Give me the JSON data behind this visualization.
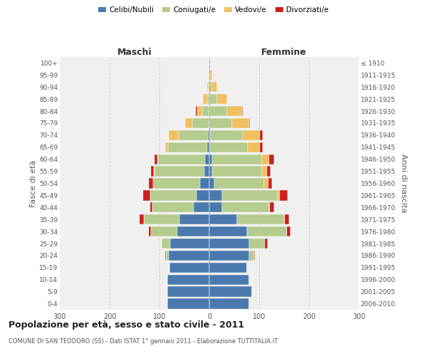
{
  "age_groups": [
    "0-4",
    "5-9",
    "10-14",
    "15-19",
    "20-24",
    "25-29",
    "30-34",
    "35-39",
    "40-44",
    "45-49",
    "50-54",
    "55-59",
    "60-64",
    "65-69",
    "70-74",
    "75-79",
    "80-84",
    "85-89",
    "90-94",
    "95-99",
    "100+"
  ],
  "birth_years": [
    "2006-2010",
    "2001-2005",
    "1996-2000",
    "1991-1995",
    "1986-1990",
    "1981-1985",
    "1976-1980",
    "1971-1975",
    "1966-1970",
    "1961-1965",
    "1956-1960",
    "1951-1955",
    "1946-1950",
    "1941-1945",
    "1936-1940",
    "1931-1935",
    "1926-1930",
    "1921-1925",
    "1916-1920",
    "1911-1915",
    "≤ 1910"
  ],
  "male": {
    "celibe": [
      85,
      85,
      85,
      80,
      82,
      78,
      65,
      60,
      32,
      26,
      18,
      10,
      8,
      5,
      3,
      2,
      0,
      0,
      0,
      0,
      0
    ],
    "coniugato": [
      0,
      0,
      0,
      0,
      5,
      18,
      52,
      72,
      82,
      92,
      95,
      100,
      95,
      78,
      58,
      32,
      15,
      5,
      2,
      0,
      0
    ],
    "vedovo": [
      0,
      0,
      0,
      0,
      0,
      0,
      0,
      0,
      0,
      0,
      0,
      2,
      2,
      5,
      20,
      15,
      10,
      8,
      2,
      1,
      0
    ],
    "divorziato": [
      0,
      0,
      0,
      0,
      2,
      0,
      5,
      8,
      5,
      15,
      8,
      5,
      5,
      0,
      0,
      0,
      2,
      0,
      0,
      0,
      0
    ]
  },
  "female": {
    "nubile": [
      80,
      85,
      80,
      75,
      80,
      80,
      75,
      55,
      25,
      25,
      10,
      5,
      5,
      2,
      2,
      0,
      0,
      0,
      0,
      0,
      0
    ],
    "coniugata": [
      0,
      0,
      0,
      0,
      10,
      32,
      80,
      95,
      95,
      112,
      100,
      100,
      100,
      75,
      65,
      45,
      35,
      15,
      5,
      2,
      0
    ],
    "vedova": [
      0,
      0,
      0,
      0,
      0,
      0,
      0,
      2,
      2,
      5,
      8,
      10,
      15,
      25,
      35,
      35,
      30,
      20,
      10,
      3,
      1
    ],
    "divorziata": [
      0,
      0,
      0,
      0,
      2,
      5,
      8,
      8,
      8,
      15,
      8,
      8,
      10,
      5,
      5,
      2,
      2,
      0,
      0,
      0,
      0
    ]
  },
  "color_celibe": "#4a7aad",
  "color_coniugato": "#b5cc8e",
  "color_vedovo": "#f0c060",
  "color_divorziato": "#cc2020",
  "xlim": 300,
  "title": "Popolazione per età, sesso e stato civile - 2011",
  "subtitle": "COMUNE DI SAN TEODORO (SS) - Dati ISTAT 1° gennaio 2011 - Elaborazione TUTTITALIA.IT",
  "ylabel_left": "Fasce di età",
  "ylabel_right": "Anni di nascita",
  "xlabel_maschi": "Maschi",
  "xlabel_femmine": "Femmine",
  "bg_color": "#f0f0f0",
  "grid_color": "#cccccc"
}
